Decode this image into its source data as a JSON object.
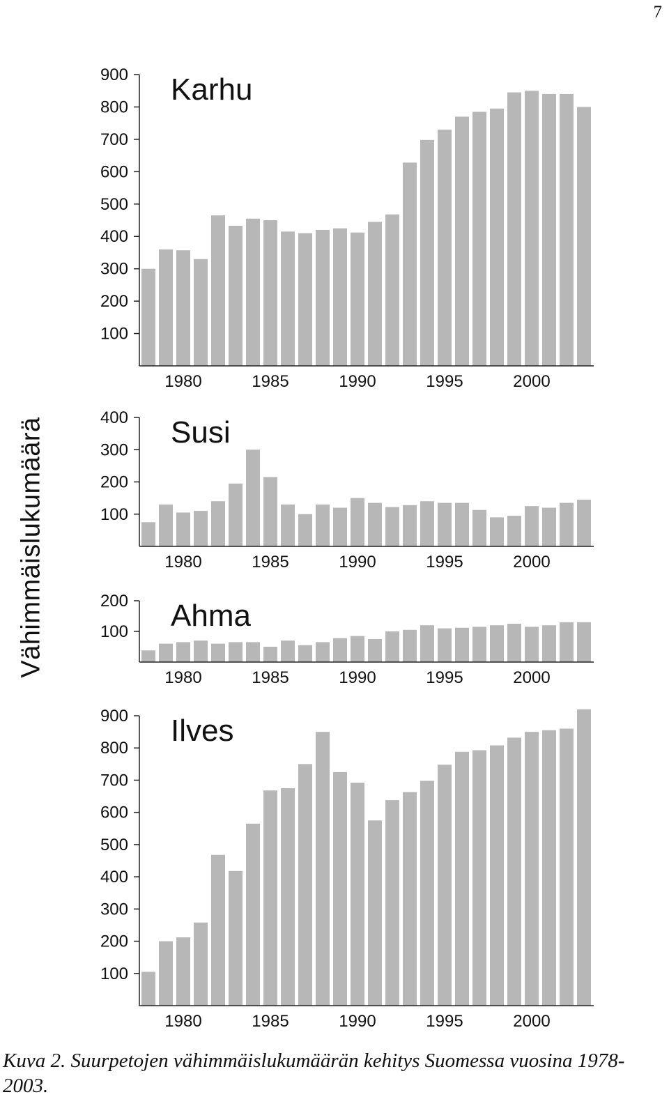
{
  "page_number": "7",
  "y_axis_title": "Vähimmäislukumäärä",
  "caption": "Kuva 2. Suurpetojen vähimmäislukumäärän kehitys Suomessa vuosina 1978-2003.",
  "colors": {
    "bar": "#b7b7b7",
    "axis": "#222222",
    "text": "#111111"
  },
  "chart_data": [
    {
      "type": "bar",
      "title": "Karhu",
      "xlabel": "",
      "ylabel": "Vähimmäislukumäärä",
      "ylim": [
        0,
        900
      ],
      "y_ticks": [
        100,
        200,
        300,
        400,
        500,
        600,
        700,
        800,
        900
      ],
      "x_ticks": [
        1980,
        1985,
        1990,
        1995,
        2000
      ],
      "categories": [
        1978,
        1979,
        1980,
        1981,
        1982,
        1983,
        1984,
        1985,
        1986,
        1987,
        1988,
        1989,
        1990,
        1991,
        1992,
        1993,
        1994,
        1995,
        1996,
        1997,
        1998,
        1999,
        2000,
        2001,
        2002,
        2003
      ],
      "values": [
        300,
        360,
        357,
        330,
        465,
        433,
        455,
        450,
        415,
        410,
        420,
        425,
        412,
        445,
        468,
        628,
        698,
        730,
        770,
        785,
        795,
        845,
        850,
        840,
        840,
        800
      ]
    },
    {
      "type": "bar",
      "title": "Susi",
      "xlabel": "",
      "ylabel": "Vähimmäislukumäärä",
      "ylim": [
        0,
        400
      ],
      "y_ticks": [
        100,
        200,
        300,
        400
      ],
      "x_ticks": [
        1980,
        1985,
        1990,
        1995,
        2000
      ],
      "categories": [
        1978,
        1979,
        1980,
        1981,
        1982,
        1983,
        1984,
        1985,
        1986,
        1987,
        1988,
        1989,
        1990,
        1991,
        1992,
        1993,
        1994,
        1995,
        1996,
        1997,
        1998,
        1999,
        2000,
        2001,
        2002,
        2003
      ],
      "values": [
        75,
        130,
        105,
        110,
        140,
        195,
        300,
        215,
        130,
        100,
        130,
        120,
        150,
        135,
        122,
        128,
        140,
        135,
        135,
        113,
        90,
        95,
        125,
        120,
        135,
        145
      ]
    },
    {
      "type": "bar",
      "title": "Ahma",
      "xlabel": "",
      "ylabel": "Vähimmäislukumäärä",
      "ylim": [
        0,
        200
      ],
      "y_ticks": [
        100,
        200
      ],
      "x_ticks": [
        1980,
        1985,
        1990,
        1995,
        2000
      ],
      "categories": [
        1978,
        1979,
        1980,
        1981,
        1982,
        1983,
        1984,
        1985,
        1986,
        1987,
        1988,
        1989,
        1990,
        1991,
        1992,
        1993,
        1994,
        1995,
        1996,
        1997,
        1998,
        1999,
        2000,
        2001,
        2002,
        2003
      ],
      "values": [
        38,
        60,
        65,
        70,
        60,
        65,
        65,
        50,
        70,
        55,
        65,
        78,
        85,
        75,
        100,
        105,
        120,
        110,
        112,
        115,
        120,
        125,
        115,
        120,
        130,
        130
      ]
    },
    {
      "type": "bar",
      "title": "Ilves",
      "xlabel": "",
      "ylabel": "Vähimmäislukumäärä",
      "ylim": [
        0,
        900
      ],
      "y_ticks": [
        100,
        200,
        300,
        400,
        500,
        600,
        700,
        800,
        900
      ],
      "x_ticks": [
        1980,
        1985,
        1990,
        1995,
        2000
      ],
      "categories": [
        1978,
        1979,
        1980,
        1981,
        1982,
        1983,
        1984,
        1985,
        1986,
        1987,
        1988,
        1989,
        1990,
        1991,
        1992,
        1993,
        1994,
        1995,
        1996,
        1997,
        1998,
        1999,
        2000,
        2001,
        2002,
        2003
      ],
      "values": [
        105,
        200,
        212,
        258,
        468,
        418,
        565,
        668,
        675,
        750,
        850,
        725,
        692,
        575,
        638,
        663,
        698,
        748,
        788,
        793,
        808,
        832,
        850,
        855,
        860,
        920
      ]
    }
  ]
}
